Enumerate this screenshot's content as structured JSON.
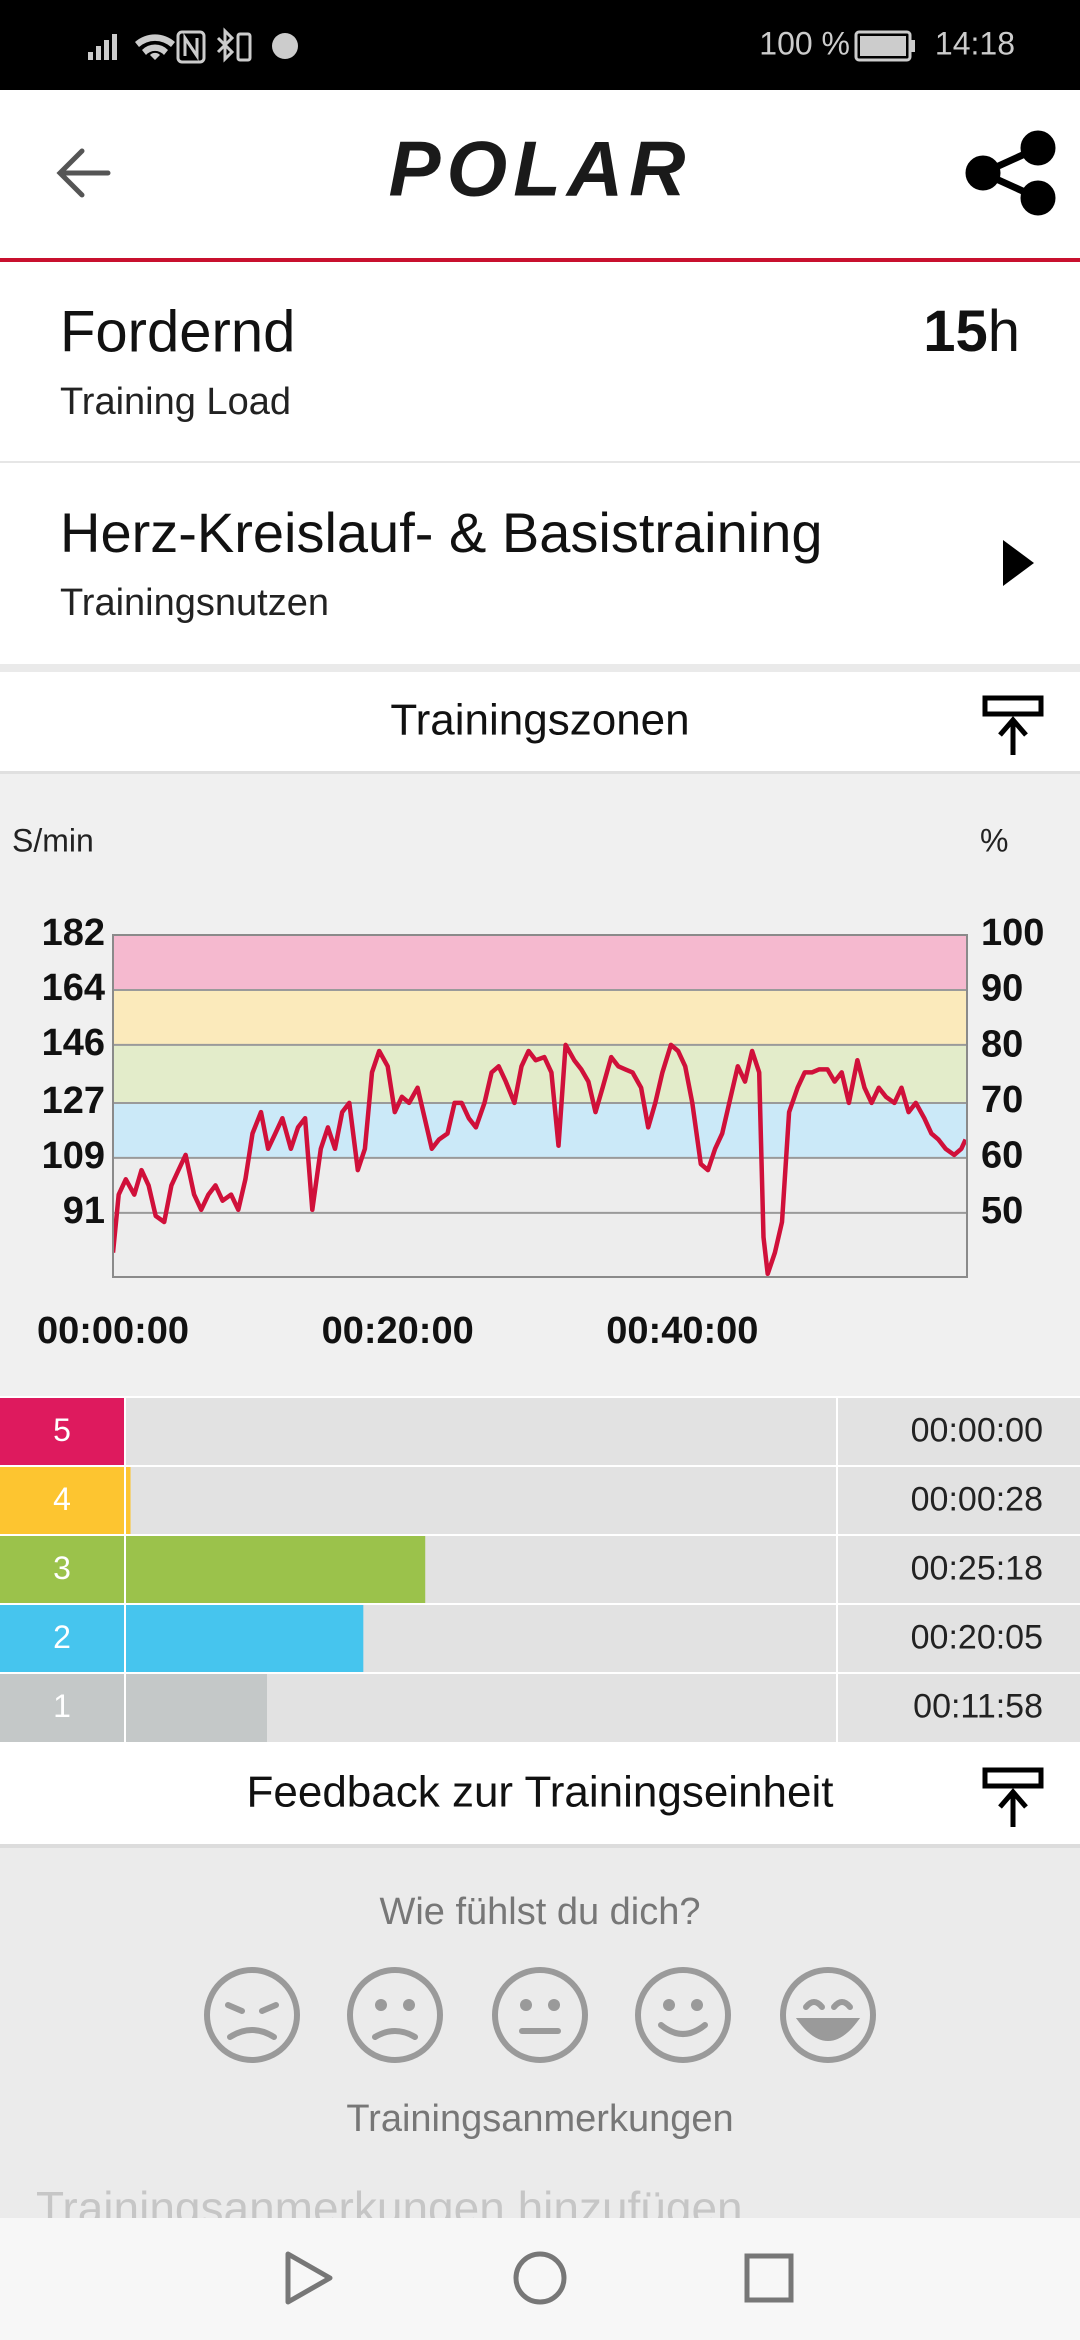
{
  "status_bar": {
    "battery": "100 %",
    "time": "14:18"
  },
  "header": {
    "logo": "POLAR"
  },
  "training_load": {
    "title": "Fordernd",
    "label": "Training Load",
    "value": "15",
    "unit": "h"
  },
  "training_benefit": {
    "title": "Herz-Kreislauf- & Basistraining",
    "label": "Trainingsnutzen"
  },
  "zones_section": {
    "title": "Trainingszonen"
  },
  "chart_data": {
    "type": "line",
    "y_label": "S/min",
    "y2_label": "%",
    "x": [
      0,
      0.4,
      0.9,
      1.5,
      2.0,
      2.5,
      3.0,
      3.6,
      4.1,
      4.6,
      5.1,
      5.7,
      6.2,
      6.7,
      7.2,
      7.7,
      8.3,
      8.8,
      9.3,
      9.8,
      10.4,
      10.9,
      11.4,
      11.9,
      12.5,
      13.0,
      13.5,
      14.0,
      14.6,
      15.1,
      15.6,
      16.1,
      16.6,
      17.2,
      17.7,
      18.2,
      18.7,
      19.3,
      19.8,
      20.3,
      20.8,
      21.4,
      21.9,
      22.4,
      22.9,
      23.5,
      24.0,
      24.5,
      25.0,
      25.5,
      26.1,
      26.6,
      27.1,
      27.6,
      28.2,
      28.7,
      29.2,
      29.7,
      30.3,
      30.8,
      31.3,
      31.8,
      32.4,
      32.9,
      33.4,
      33.9,
      34.4,
      35.0,
      35.5,
      36.0,
      36.5,
      37.1,
      37.6,
      38.1,
      38.6,
      39.2,
      39.7,
      40.2,
      40.7,
      41.3,
      41.8,
      42.3,
      42.8,
      43.4,
      43.9,
      44.4,
      44.9,
      45.4,
      45.7,
      46.0,
      46.5,
      47.0,
      47.5,
      48.1,
      48.6,
      49.1,
      49.6,
      50.2,
      50.7,
      51.2,
      51.7,
      52.3,
      52.8,
      53.3,
      53.8,
      54.3,
      54.9,
      55.4,
      55.9,
      56.4,
      57.0,
      57.5,
      58.0,
      58.5,
      59.1,
      59.6,
      59.9
    ],
    "series": [
      {
        "color": "#d0103a",
        "values": [
          78,
          97,
          102,
          97,
          105,
          100,
          90,
          88,
          100,
          105,
          110,
          97,
          92,
          97,
          100,
          95,
          97,
          92,
          102,
          117,
          124,
          112,
          117,
          122,
          112,
          119,
          122,
          92,
          112,
          119,
          112,
          124,
          127,
          105,
          112,
          137,
          144,
          139,
          124,
          129,
          127,
          132,
          122,
          112,
          115,
          117,
          127,
          127,
          122,
          119,
          127,
          137,
          139,
          134,
          127,
          139,
          144,
          141,
          142,
          137,
          113,
          146,
          141,
          138,
          134,
          124,
          132,
          142,
          139,
          138,
          137,
          132,
          119,
          127,
          137,
          146,
          144,
          139,
          127,
          107,
          105,
          112,
          117,
          129,
          139,
          134,
          144,
          137,
          83,
          71,
          78,
          88,
          124,
          132,
          137,
          137,
          138,
          138,
          134,
          137,
          127,
          141,
          132,
          127,
          132,
          129,
          127,
          132,
          124,
          127,
          122,
          117,
          115,
          112,
          110,
          112,
          115
        ]
      }
    ],
    "xlim": [
      0,
      60
    ],
    "xticks": [
      {
        "value": 0,
        "label": "00:00:00"
      },
      {
        "value": 20,
        "label": "00:20:00"
      },
      {
        "value": 40,
        "label": "00:40:00"
      }
    ],
    "ylim": [
      70,
      182
    ],
    "yticks": [
      182,
      164,
      146,
      127,
      109,
      91
    ],
    "y2lim": [
      38.5,
      100
    ],
    "y2ticks": [
      100,
      90,
      80,
      70,
      60,
      50
    ],
    "band_colors": [
      "#f5b9cf",
      "#fbeabb",
      "#e3ecca",
      "#cbe9f8",
      "#ededed"
    ]
  },
  "zones": {
    "type": "bar",
    "categories": [
      "5",
      "4",
      "3",
      "2",
      "1"
    ],
    "values": [
      0,
      28,
      1518,
      1205,
      718
    ],
    "value_labels": [
      "00:00:00",
      "00:00:28",
      "00:25:18",
      "00:20:05",
      "00:11:58"
    ],
    "colors": [
      "#de1a5e",
      "#fdc530",
      "#9bc24b",
      "#46c5ee",
      "#c4c8c8"
    ],
    "xlim": [
      0,
      3600
    ]
  },
  "feedback": {
    "title": "Feedback zur Trainingseinheit",
    "question": "Wie fühlst du dich?",
    "notes_title": "Trainingsanmerkungen",
    "notes_placeholder": "Trainingsanmerkungen hinzufügen"
  }
}
